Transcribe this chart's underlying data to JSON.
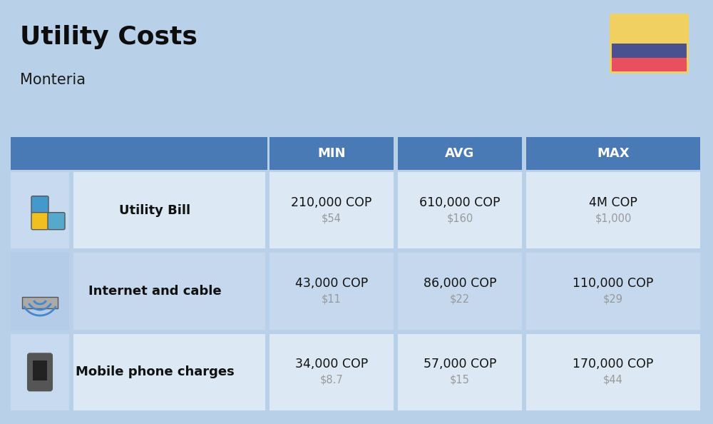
{
  "title": "Utility Costs",
  "subtitle": "Monteria",
  "background_color": "#b8d0e8",
  "header_color": "#4a7ab5",
  "header_text_color": "#ffffff",
  "row_color_light": "#dce9f5",
  "row_color_dark": "#c5d8ee",
  "icon_col_color_light": "#c8daf0",
  "icon_col_color_dark": "#b5cce8",
  "col_headers": [
    "MIN",
    "AVG",
    "MAX"
  ],
  "rows": [
    {
      "label": "Utility Bill",
      "min_cop": "210,000 COP",
      "min_usd": "$54",
      "avg_cop": "610,000 COP",
      "avg_usd": "$160",
      "max_cop": "4M COP",
      "max_usd": "$1,000"
    },
    {
      "label": "Internet and cable",
      "min_cop": "43,000 COP",
      "min_usd": "$11",
      "avg_cop": "86,000 COP",
      "avg_usd": "$22",
      "max_cop": "110,000 COP",
      "max_usd": "$29"
    },
    {
      "label": "Mobile phone charges",
      "min_cop": "34,000 COP",
      "min_usd": "$8.7",
      "avg_cop": "57,000 COP",
      "avg_usd": "$15",
      "max_cop": "170,000 COP",
      "max_usd": "$44"
    }
  ],
  "flag_yellow": "#f0d060",
  "flag_blue": "#4a5090",
  "flag_red": "#e85060",
  "cop_fontsize": 12.5,
  "usd_fontsize": 10.5,
  "label_fontsize": 13,
  "header_fontsize": 13,
  "title_fontsize": 26,
  "subtitle_fontsize": 15,
  "cell_text_color": "#111111",
  "usd_text_color": "#999999",
  "white": "#ffffff"
}
